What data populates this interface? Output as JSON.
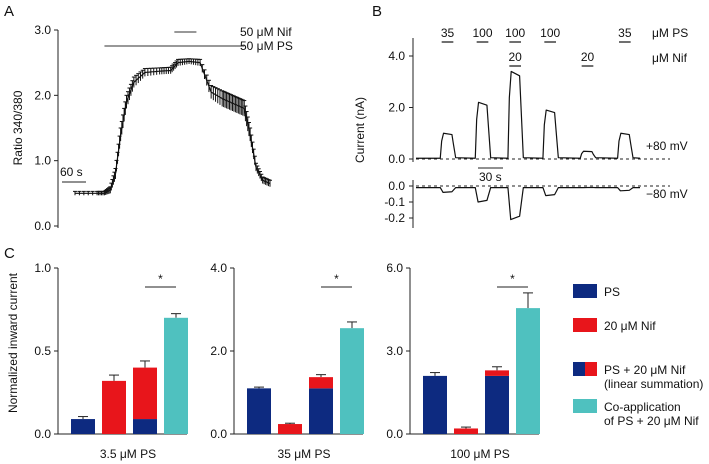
{
  "panels": {
    "a": "A",
    "b": "B",
    "c": "C"
  },
  "colors": {
    "ps": "#0d2a80",
    "nif": "#e8151b",
    "coapp": "#4fc1bf",
    "trace": "#111111",
    "axis": "#222222"
  },
  "chart_data": [
    {
      "id": "A",
      "type": "line",
      "title": "",
      "ylabel": "Ratio 340/380",
      "ylim": [
        0,
        3
      ],
      "yticks": [
        "0.0",
        "1.0",
        "2.0",
        "3.0"
      ],
      "x_unit": "s",
      "x": [
        0,
        30,
        40,
        48,
        55,
        62,
        70,
        80,
        95,
        115,
        130,
        140,
        155,
        170,
        185,
        200,
        210,
        220,
        230,
        238,
        246,
        255,
        265
      ],
      "y": [
        0.5,
        0.5,
        0.5,
        0.55,
        0.8,
        1.4,
        1.9,
        2.2,
        2.35,
        2.37,
        2.38,
        2.5,
        2.52,
        2.5,
        2.05,
        1.95,
        1.9,
        1.85,
        1.8,
        1.4,
        0.9,
        0.7,
        0.65
      ],
      "error": [
        0.03,
        0.03,
        0.03,
        0.05,
        0.08,
        0.1,
        0.1,
        0.08,
        0.06,
        0.05,
        0.05,
        0.05,
        0.04,
        0.05,
        0.1,
        0.12,
        0.12,
        0.12,
        0.12,
        0.1,
        0.06,
        0.05,
        0.05
      ],
      "scalebar_label": "60 s",
      "annotations": [
        {
          "label": "50 μM Nif",
          "start": 135,
          "end": 165
        },
        {
          "label": "50 μM PS",
          "start": 40,
          "end": 230
        }
      ]
    },
    {
      "id": "B",
      "type": "line",
      "ylabel": "Current (nA)",
      "top": {
        "yticks": [
          "0.0",
          "2.0",
          "4.0"
        ],
        "ylim": [
          0,
          4.4
        ],
        "label": "+80 mV"
      },
      "bottom": {
        "yticks": [
          "0.0",
          "-0.1",
          "-0.2"
        ],
        "ylim": [
          -0.25,
          0.02
        ],
        "label": "−80 mV"
      },
      "scalebar_label": "30 s",
      "ps_header": "μM PS",
      "nif_header": "μM Nif",
      "applications": [
        {
          "ps": "35",
          "nif": "",
          "start": 55,
          "end": 80,
          "top_peak": 1.0,
          "bottom_peak": -0.04
        },
        {
          "ps": "100",
          "nif": "",
          "start": 130,
          "end": 155,
          "top_peak": 2.2,
          "bottom_peak": -0.1
        },
        {
          "ps": "100",
          "nif": "20",
          "start": 200,
          "end": 225,
          "top_peak": 3.4,
          "bottom_peak": -0.21
        },
        {
          "ps": "100",
          "nif": "",
          "start": 275,
          "end": 300,
          "top_peak": 1.9,
          "bottom_peak": -0.06
        },
        {
          "ps": "",
          "nif": "20",
          "start": 355,
          "end": 380,
          "top_peak": 0.3,
          "bottom_peak": -0.01
        },
        {
          "ps": "35",
          "nif": "",
          "start": 435,
          "end": 460,
          "top_peak": 1.0,
          "bottom_peak": -0.03
        }
      ]
    },
    {
      "id": "C",
      "type": "bar",
      "ylabel": "Normalized inward current",
      "legend": [
        {
          "label": "PS",
          "kind": "ps"
        },
        {
          "label": "20 μM Nif",
          "kind": "nif"
        },
        {
          "label": "PS + 20 μM Nif",
          "label2": "(linear summation)",
          "kind": "sum"
        },
        {
          "label": "Co-application",
          "label2": "of PS + 20 μM Nif",
          "kind": "coapp"
        }
      ],
      "groups": [
        {
          "xlabel": "3.5 μM PS",
          "ylim": [
            0,
            1.0
          ],
          "yticks": [
            "0.0",
            "0.5",
            "1.0"
          ],
          "ps": 0.09,
          "ps_err": 0.015,
          "nif": 0.32,
          "nif_err": 0.035,
          "sum_ps": 0.09,
          "sum_nif": 0.31,
          "sum_err": 0.04,
          "coapp": 0.7,
          "coapp_err": 0.025,
          "sig": "*"
        },
        {
          "xlabel": "35 μM PS",
          "ylim": [
            0,
            4.0
          ],
          "yticks": [
            "0.0",
            "2.0",
            "4.0"
          ],
          "ps": 1.1,
          "ps_err": 0.03,
          "nif": 0.24,
          "nif_err": 0.02,
          "sum_ps": 1.1,
          "sum_nif": 0.27,
          "sum_err": 0.06,
          "coapp": 2.55,
          "coapp_err": 0.15,
          "sig": "*"
        },
        {
          "xlabel": "100 μM PS",
          "ylim": [
            0,
            6.0
          ],
          "yticks": [
            "0.0",
            "3.0",
            "6.0"
          ],
          "ps": 2.1,
          "ps_err": 0.12,
          "nif": 0.2,
          "nif_err": 0.05,
          "sum_ps": 2.1,
          "sum_nif": 0.2,
          "sum_err": 0.13,
          "coapp": 4.55,
          "coapp_err": 0.55,
          "sig": "*"
        }
      ]
    }
  ]
}
